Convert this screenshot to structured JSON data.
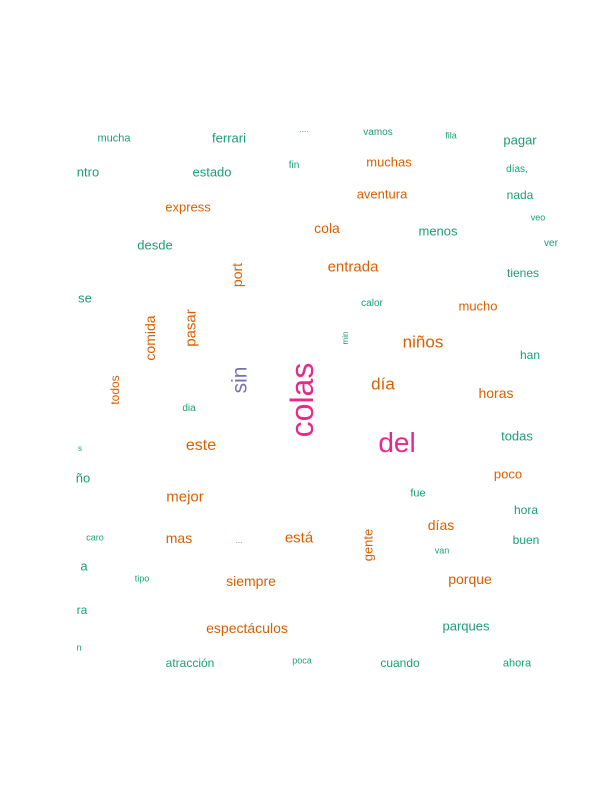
{
  "palette": {
    "green": "#1b9e77",
    "orange": "#d95f02",
    "purple": "#7570b3",
    "pink": "#e7298a"
  },
  "words": [
    {
      "text": "del",
      "color": "pink"
    },
    {
      "text": "colas",
      "color": "pink"
    },
    {
      "text": "sin",
      "color": "purple"
    },
    {
      "text": "niños",
      "color": "orange"
    },
    {
      "text": "día",
      "color": "orange"
    },
    {
      "text": "este",
      "color": "orange"
    },
    {
      "text": "entrada",
      "color": "orange"
    },
    {
      "text": "mejor",
      "color": "orange"
    },
    {
      "text": "está",
      "color": "orange"
    },
    {
      "text": "días",
      "color": "orange"
    },
    {
      "text": "siempre",
      "color": "orange"
    },
    {
      "text": "espectáculos",
      "color": "orange"
    },
    {
      "text": "mas",
      "color": "orange"
    },
    {
      "text": "horas",
      "color": "orange"
    },
    {
      "text": "porque",
      "color": "orange"
    },
    {
      "text": "poco",
      "color": "orange"
    },
    {
      "text": "mucho",
      "color": "orange"
    },
    {
      "text": "aventura",
      "color": "orange"
    },
    {
      "text": "muchas",
      "color": "orange"
    },
    {
      "text": "cola",
      "color": "orange"
    },
    {
      "text": "express",
      "color": "orange"
    },
    {
      "text": "pasar",
      "color": "orange"
    },
    {
      "text": "comida",
      "color": "orange"
    },
    {
      "text": "port",
      "color": "orange"
    },
    {
      "text": "gente",
      "color": "orange"
    },
    {
      "text": "todos",
      "color": "orange"
    },
    {
      "text": "mucha",
      "color": "green"
    },
    {
      "text": "ferrari",
      "color": "green"
    },
    {
      "text": "....",
      "color": "green"
    },
    {
      "text": "vamos",
      "color": "green"
    },
    {
      "text": "fila",
      "color": "green"
    },
    {
      "text": "pagar",
      "color": "green"
    },
    {
      "text": "ntro",
      "color": "green"
    },
    {
      "text": "estado",
      "color": "green"
    },
    {
      "text": "fin",
      "color": "green"
    },
    {
      "text": "días,",
      "color": "green"
    },
    {
      "text": "nada",
      "color": "green"
    },
    {
      "text": "veo",
      "color": "green"
    },
    {
      "text": "menos",
      "color": "green"
    },
    {
      "text": "ver",
      "color": "green"
    },
    {
      "text": "desde",
      "color": "green"
    },
    {
      "text": "tienes",
      "color": "green"
    },
    {
      "text": "se",
      "color": "green"
    },
    {
      "text": "calor",
      "color": "green"
    },
    {
      "text": "min",
      "color": "green"
    },
    {
      "text": "han",
      "color": "green"
    },
    {
      "text": "dia",
      "color": "green"
    },
    {
      "text": "todas",
      "color": "green"
    },
    {
      "text": "s",
      "color": "green"
    },
    {
      "text": "ño",
      "color": "green"
    },
    {
      "text": "fue",
      "color": "green"
    },
    {
      "text": "hora",
      "color": "green"
    },
    {
      "text": "caro",
      "color": "green"
    },
    {
      "text": "...",
      "color": "green"
    },
    {
      "text": "buen",
      "color": "green"
    },
    {
      "text": "van",
      "color": "green"
    },
    {
      "text": "a",
      "color": "green"
    },
    {
      "text": "tipo",
      "color": "green"
    },
    {
      "text": "ra",
      "color": "green"
    },
    {
      "text": "parques",
      "color": "green"
    },
    {
      "text": "n",
      "color": "green"
    },
    {
      "text": "atracción",
      "color": "green"
    },
    {
      "text": "poca",
      "color": "green"
    },
    {
      "text": "cuando",
      "color": "green"
    },
    {
      "text": "ahora",
      "color": "green"
    }
  ]
}
